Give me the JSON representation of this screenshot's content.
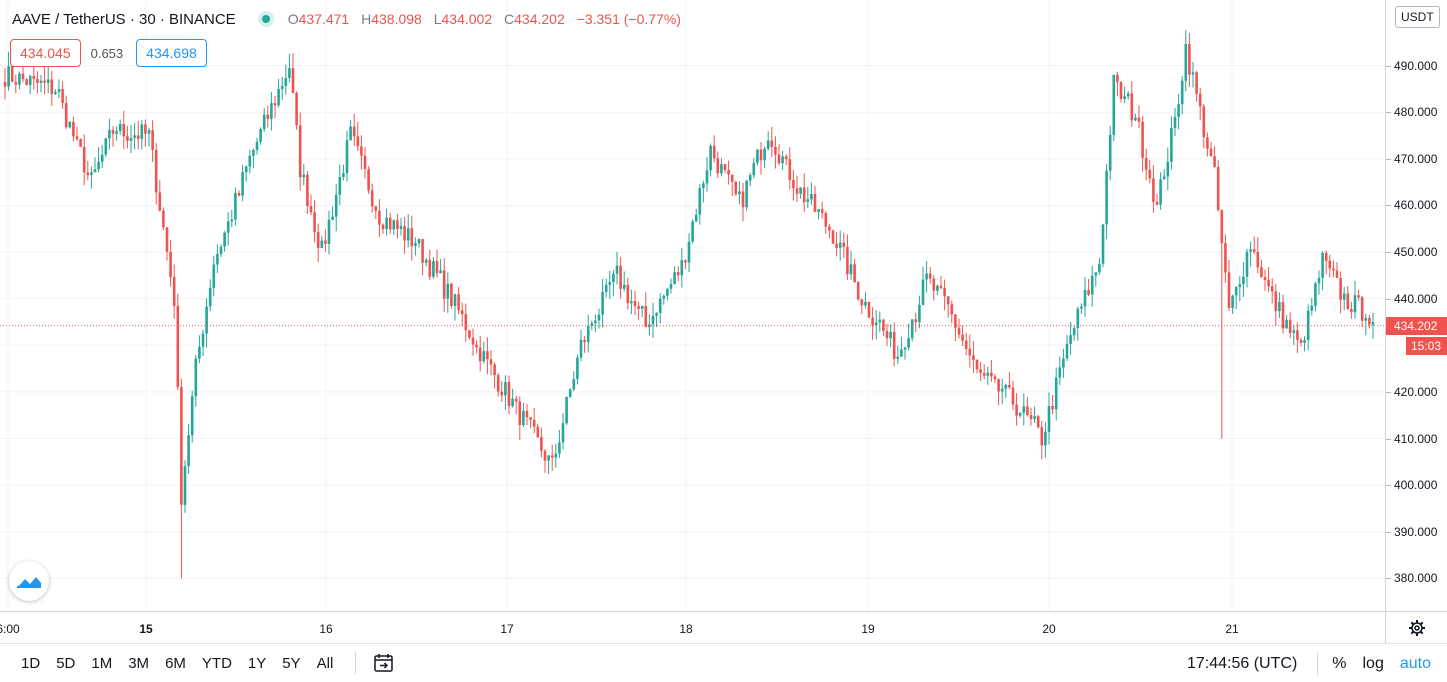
{
  "header": {
    "symbol": "AAVE / TetherUS · 30 · BINANCE",
    "ohlc": {
      "o_key": "O",
      "o": "437.471",
      "h_key": "H",
      "h": "438.098",
      "l_key": "L",
      "l": "434.002",
      "c_key": "C",
      "c": "434.202",
      "change": "−3.351 (−0.77%)"
    },
    "status_icon": "live-dot-icon"
  },
  "quote": {
    "sell": "434.045",
    "spread": "0.653",
    "buy": "434.698"
  },
  "price_axis": {
    "unit": "USDT",
    "ticks": [
      "490.000",
      "480.000",
      "470.000",
      "460.000",
      "450.000",
      "440.000",
      "420.000",
      "410.000",
      "400.000",
      "390.000",
      "380.000"
    ],
    "last_price": "434.202",
    "countdown": "15:03"
  },
  "time_axis": {
    "ticks": [
      {
        "label": "6:00",
        "bold": false
      },
      {
        "label": "15",
        "bold": true
      },
      {
        "label": "16",
        "bold": false
      },
      {
        "label": "17",
        "bold": false
      },
      {
        "label": "18",
        "bold": false
      },
      {
        "label": "19",
        "bold": false
      },
      {
        "label": "20",
        "bold": false
      },
      {
        "label": "21",
        "bold": false
      }
    ]
  },
  "bottom_bar": {
    "ranges": [
      "1D",
      "5D",
      "1M",
      "3M",
      "6M",
      "YTD",
      "1Y",
      "5Y",
      "All"
    ],
    "clock": "17:44:56 (UTC)",
    "percent": "%",
    "log": "log",
    "auto": "auto"
  },
  "colors": {
    "up": "#26a69a",
    "down": "#ef5350",
    "accent": "#2196f3",
    "grid": "#f0f3fa"
  },
  "chart_data": {
    "type": "candlestick",
    "timeframe": "30",
    "x_ticks": [
      "6:00",
      "15",
      "16",
      "17",
      "18",
      "19",
      "20",
      "21"
    ],
    "y_range": [
      376,
      500
    ],
    "last_price": 434.202,
    "anchors": [
      {
        "t": 0,
        "p": 488
      },
      {
        "t": 14,
        "p": 485
      },
      {
        "t": 24,
        "p": 465
      },
      {
        "t": 30,
        "p": 476
      },
      {
        "t": 40,
        "p": 475
      },
      {
        "t": 47,
        "p": 440
      },
      {
        "t": 49,
        "p": 398
      },
      {
        "t": 53,
        "p": 425
      },
      {
        "t": 58,
        "p": 448
      },
      {
        "t": 62,
        "p": 456
      },
      {
        "t": 68,
        "p": 470
      },
      {
        "t": 79,
        "p": 490
      },
      {
        "t": 82,
        "p": 468
      },
      {
        "t": 88,
        "p": 450
      },
      {
        "t": 96,
        "p": 475
      },
      {
        "t": 104,
        "p": 458
      },
      {
        "t": 114,
        "p": 452
      },
      {
        "t": 124,
        "p": 440
      },
      {
        "t": 134,
        "p": 426
      },
      {
        "t": 144,
        "p": 414
      },
      {
        "t": 152,
        "p": 404
      },
      {
        "t": 160,
        "p": 430
      },
      {
        "t": 170,
        "p": 445
      },
      {
        "t": 178,
        "p": 434
      },
      {
        "t": 188,
        "p": 447
      },
      {
        "t": 196,
        "p": 472
      },
      {
        "t": 204,
        "p": 460
      },
      {
        "t": 212,
        "p": 476
      },
      {
        "t": 220,
        "p": 464
      },
      {
        "t": 230,
        "p": 454
      },
      {
        "t": 238,
        "p": 440
      },
      {
        "t": 248,
        "p": 428
      },
      {
        "t": 256,
        "p": 444
      },
      {
        "t": 262,
        "p": 438
      },
      {
        "t": 270,
        "p": 424
      },
      {
        "t": 280,
        "p": 418
      },
      {
        "t": 288,
        "p": 410
      },
      {
        "t": 296,
        "p": 432
      },
      {
        "t": 304,
        "p": 448
      },
      {
        "t": 308,
        "p": 486
      },
      {
        "t": 314,
        "p": 479
      },
      {
        "t": 320,
        "p": 460
      },
      {
        "t": 325,
        "p": 478
      },
      {
        "t": 328,
        "p": 494
      },
      {
        "t": 332,
        "p": 480
      },
      {
        "t": 336,
        "p": 466
      },
      {
        "t": 340,
        "p": 437
      },
      {
        "t": 346,
        "p": 452
      },
      {
        "t": 352,
        "p": 440
      },
      {
        "t": 360,
        "p": 429
      },
      {
        "t": 366,
        "p": 448
      },
      {
        "t": 372,
        "p": 440
      },
      {
        "t": 378,
        "p": 437
      },
      {
        "t": 380,
        "p": 434.2
      }
    ]
  }
}
